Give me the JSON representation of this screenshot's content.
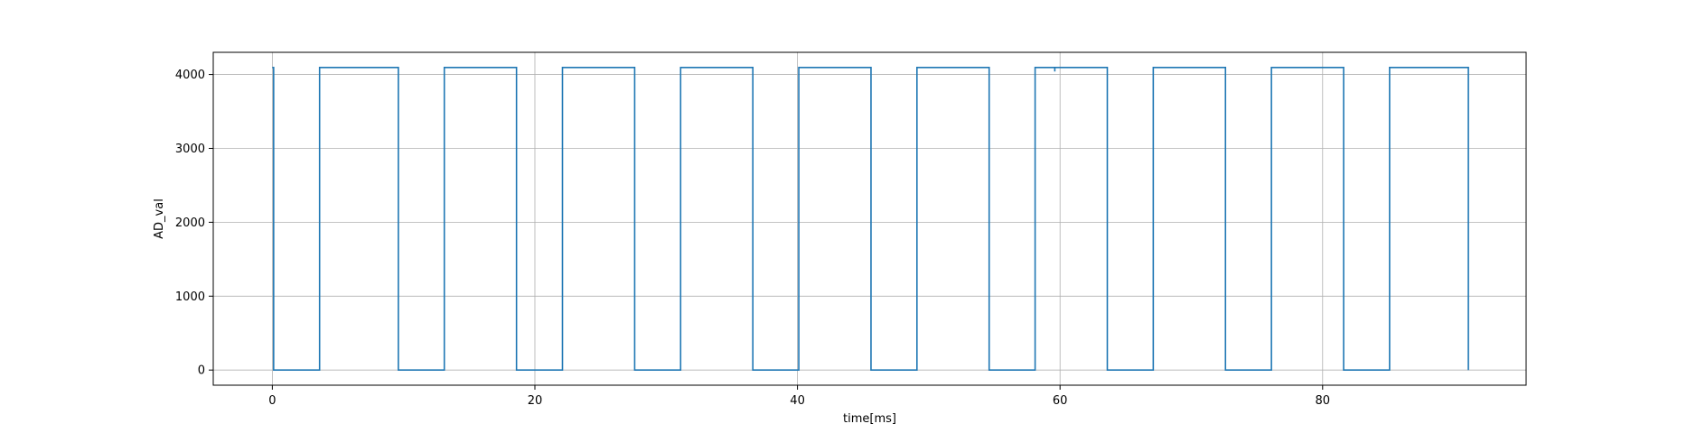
{
  "chart_data": {
    "type": "line",
    "title": "",
    "xlabel": "time[ms]",
    "ylabel": "AD_val",
    "xlim": [
      -4.5,
      95.5
    ],
    "ylim": [
      -205,
      4300
    ],
    "xticks": [
      0,
      20,
      40,
      60,
      80
    ],
    "yticks": [
      0,
      1000,
      2000,
      3000,
      4000
    ],
    "grid": true,
    "colors": {
      "line": "#1f77b4",
      "grid": "#b0b0b0",
      "axes": "#000000"
    },
    "series": [
      {
        "x": [
          0,
          0.1,
          0.1,
          3.6,
          3.6,
          9.6,
          9.6,
          13.1,
          13.1,
          18.6,
          18.6,
          22.1,
          22.1,
          27.6,
          27.6,
          31.1,
          31.1,
          36.6,
          36.6,
          40.1,
          40.1,
          45.6,
          45.6,
          49.1,
          49.1,
          54.6,
          54.6,
          58.1,
          58.1,
          59.6,
          59.6,
          59.6,
          59.6,
          63.6,
          63.6,
          67.1,
          67.1,
          72.6,
          72.6,
          76.1,
          76.1,
          81.6,
          81.6,
          85.1,
          85.1,
          91.1,
          91.1
        ],
        "y": [
          4095,
          4095,
          0,
          0,
          4095,
          4095,
          0,
          0,
          4095,
          4095,
          0,
          0,
          4095,
          4095,
          0,
          0,
          4095,
          4095,
          0,
          0,
          4095,
          4095,
          0,
          0,
          4095,
          4095,
          0,
          0,
          4095,
          4095,
          4040,
          4040,
          4095,
          4095,
          0,
          0,
          4095,
          4095,
          0,
          0,
          4095,
          4095,
          0,
          0,
          4095,
          4095,
          0
        ]
      }
    ]
  }
}
